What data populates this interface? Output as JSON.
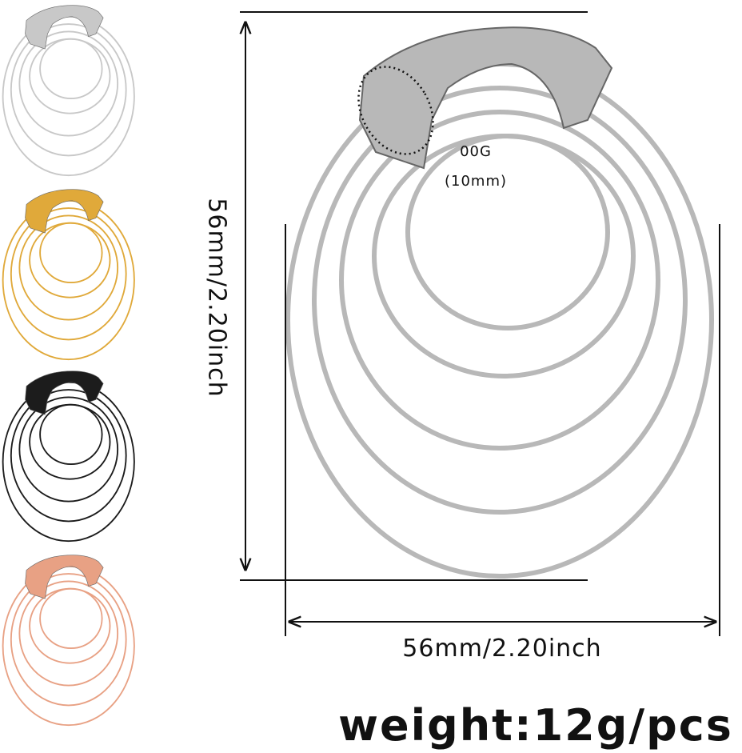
{
  "dimensions": {
    "gauge": "00G",
    "gauge_mm": "(10mm)",
    "height": "56mm/2.20inch",
    "width": "56mm/2.20inch"
  },
  "weight": "weight:12g/pcs"
}
